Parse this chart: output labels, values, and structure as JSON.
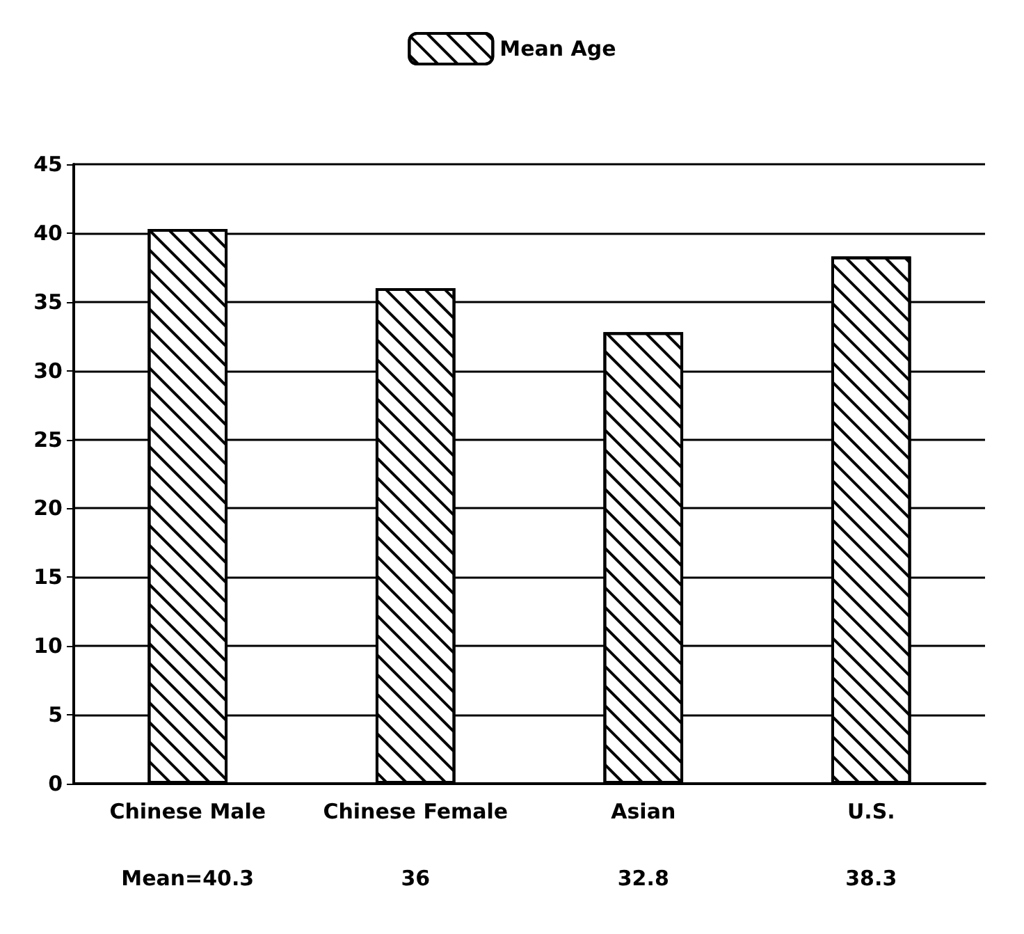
{
  "chart_data": {
    "type": "bar",
    "categories": [
      "Chinese Male",
      "Chinese Female",
      "Asian",
      "U.S."
    ],
    "series": [
      {
        "name": "Mean Age",
        "color": "#000000",
        "values": [
          40.3,
          36,
          32.8,
          38.3
        ],
        "value_labels": [
          "Mean=40.3",
          "36",
          "32.8",
          "38.3"
        ]
      }
    ],
    "ylim": [
      0,
      45
    ],
    "yticks": [
      0,
      5,
      10,
      15,
      20,
      25,
      30,
      35,
      40,
      45
    ],
    "grid": "y",
    "legend": "top"
  }
}
